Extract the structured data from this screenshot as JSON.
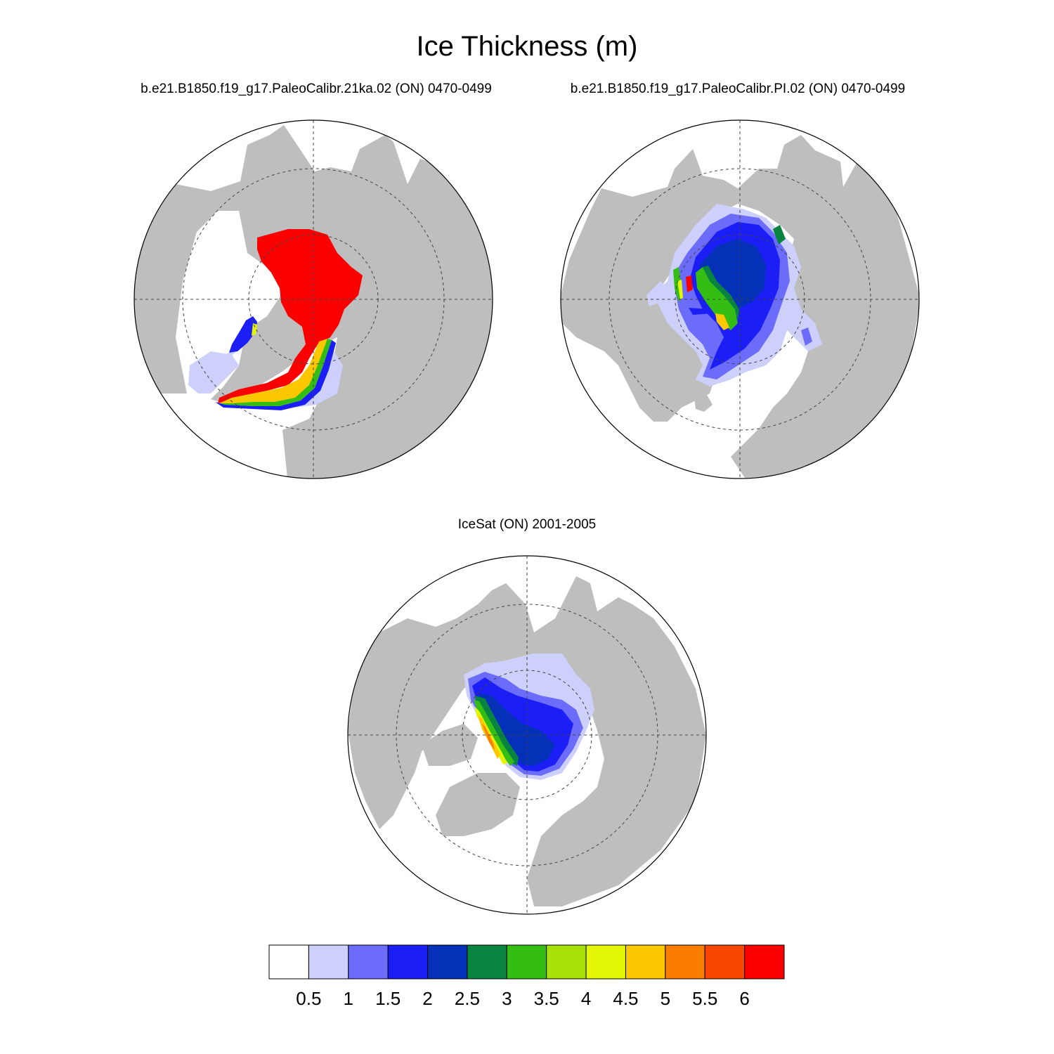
{
  "title": "Ice Thickness (m)",
  "panels": [
    {
      "name": "b.e21.B1850.f19_g17.PaleoCalibr.21ka.02 (ON) 0470-0499"
    },
    {
      "name": "b.e21.B1850.f19_g17.PaleoCalibr.PI.02 (ON) 0470-0499"
    },
    {
      "name": "IceSat (ON) 2001-2005"
    }
  ],
  "colors": {
    "land": "#bebebe",
    "ocean": "#ffffff",
    "levels": [
      "#ffffff",
      "#cdd0fb",
      "#6b6cfa",
      "#1c1ff5",
      "#0530b8",
      "#088340",
      "#34bd12",
      "#a7e108",
      "#e3f606",
      "#fbc800",
      "#fb7d00",
      "#f94600",
      "#fa0000"
    ]
  },
  "colorbar": {
    "labels": [
      "0.5",
      "1",
      "1.5",
      "2",
      "2.5",
      "3",
      "3.5",
      "4",
      "4.5",
      "5",
      "5.5",
      "6"
    ]
  }
}
